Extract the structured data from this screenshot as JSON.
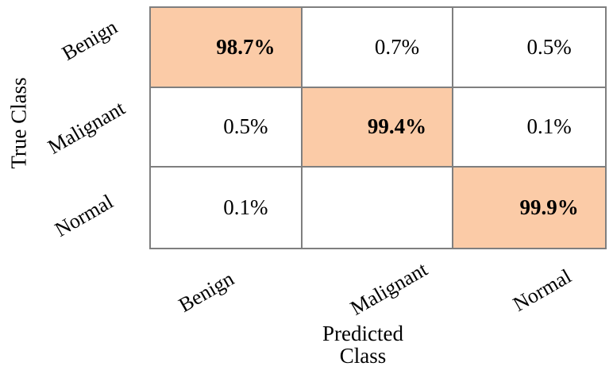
{
  "colors": {
    "diagonal_fill": "#FBCBA7",
    "grid_border": "#7F7F7F",
    "text": "#000000",
    "background": "#FFFFFF"
  },
  "chart_data": {
    "type": "heatmap",
    "subtype": "confusion-matrix",
    "title": "",
    "xlabel": "Predicted Class",
    "xlabel_lines": [
      "Predicted",
      "Class"
    ],
    "ylabel": "True Class",
    "x_categories": [
      "Benign",
      "Malignant",
      "Normal"
    ],
    "y_categories": [
      "Benign",
      "Malignant",
      "Normal"
    ],
    "values_percent": [
      [
        98.7,
        0.7,
        0.5
      ],
      [
        0.5,
        99.4,
        0.1
      ],
      [
        0.1,
        null,
        99.9
      ]
    ],
    "values_display": [
      [
        "98.7%",
        "0.7%",
        "0.5%"
      ],
      [
        "0.5%",
        "99.4%",
        "0.1%"
      ],
      [
        "0.1%",
        "",
        "99.9%"
      ]
    ],
    "diagonal_highlighted": true,
    "legend": "none",
    "grid": "on"
  }
}
